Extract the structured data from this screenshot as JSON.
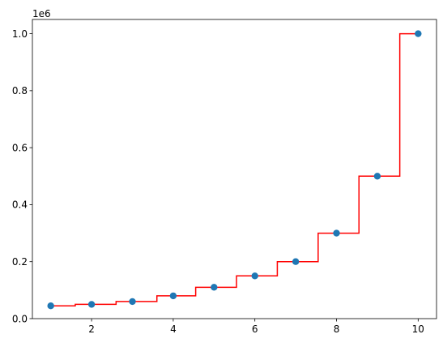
{
  "chart_data": {
    "type": "scatter",
    "title": "",
    "xlabel": "",
    "ylabel": "",
    "y_offset_label": "1e6",
    "xlim": [
      0.55,
      10.45
    ],
    "ylim": [
      0,
      1.05
    ],
    "x_ticks": [
      2,
      4,
      6,
      8,
      10
    ],
    "x_tick_labels": [
      "2",
      "4",
      "6",
      "8",
      "10"
    ],
    "y_ticks": [
      0.0,
      0.2,
      0.4,
      0.6,
      0.8,
      1.0
    ],
    "y_tick_labels": [
      "0.0",
      "0.2",
      "0.4",
      "0.6",
      "0.8",
      "1.0"
    ],
    "grid": false,
    "series": [
      {
        "kind": "points",
        "color": "#1f77b4",
        "x": [
          1,
          2,
          3,
          4,
          5,
          6,
          7,
          8,
          9,
          10
        ],
        "y": [
          0.045,
          0.05,
          0.06,
          0.08,
          0.11,
          0.15,
          0.2,
          0.3,
          0.5,
          1.0
        ]
      },
      {
        "kind": "step-line",
        "color": "#ff0000",
        "x": [
          1.0,
          1.6,
          1.6,
          2.6,
          2.6,
          3.6,
          3.6,
          4.55,
          4.55,
          5.55,
          5.55,
          6.55,
          6.55,
          7.55,
          7.55,
          8.55,
          8.55,
          9.55,
          9.55,
          10.0
        ],
        "y": [
          0.045,
          0.045,
          0.05,
          0.05,
          0.06,
          0.06,
          0.08,
          0.08,
          0.11,
          0.11,
          0.15,
          0.15,
          0.2,
          0.2,
          0.3,
          0.3,
          0.5,
          0.5,
          1.0,
          1.0
        ]
      }
    ]
  }
}
